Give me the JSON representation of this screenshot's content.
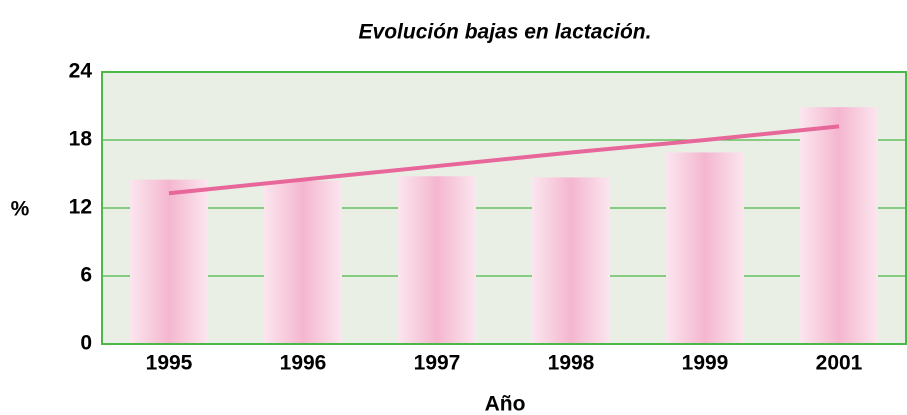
{
  "chart_data": {
    "type": "bar",
    "title": "Evolución bajas en lactación.",
    "xlabel": "Año",
    "ylabel": "%",
    "categories": [
      "1995",
      "1996",
      "1997",
      "1998",
      "1999",
      "2001"
    ],
    "series": [
      {
        "type": "bar",
        "color": "#f4b6cf",
        "values": [
          14.5,
          14.4,
          14.8,
          14.7,
          16.9,
          20.9
        ]
      },
      {
        "type": "line",
        "color": "#e8679b",
        "values": [
          13.3,
          14.5,
          15.7,
          16.9,
          18.0,
          19.2
        ]
      }
    ],
    "ylim": [
      0,
      24
    ],
    "yticks": [
      0,
      6,
      12,
      18,
      24
    ],
    "grid": true,
    "plot_background": "#e9efe4",
    "grid_color": "#4cb848"
  }
}
